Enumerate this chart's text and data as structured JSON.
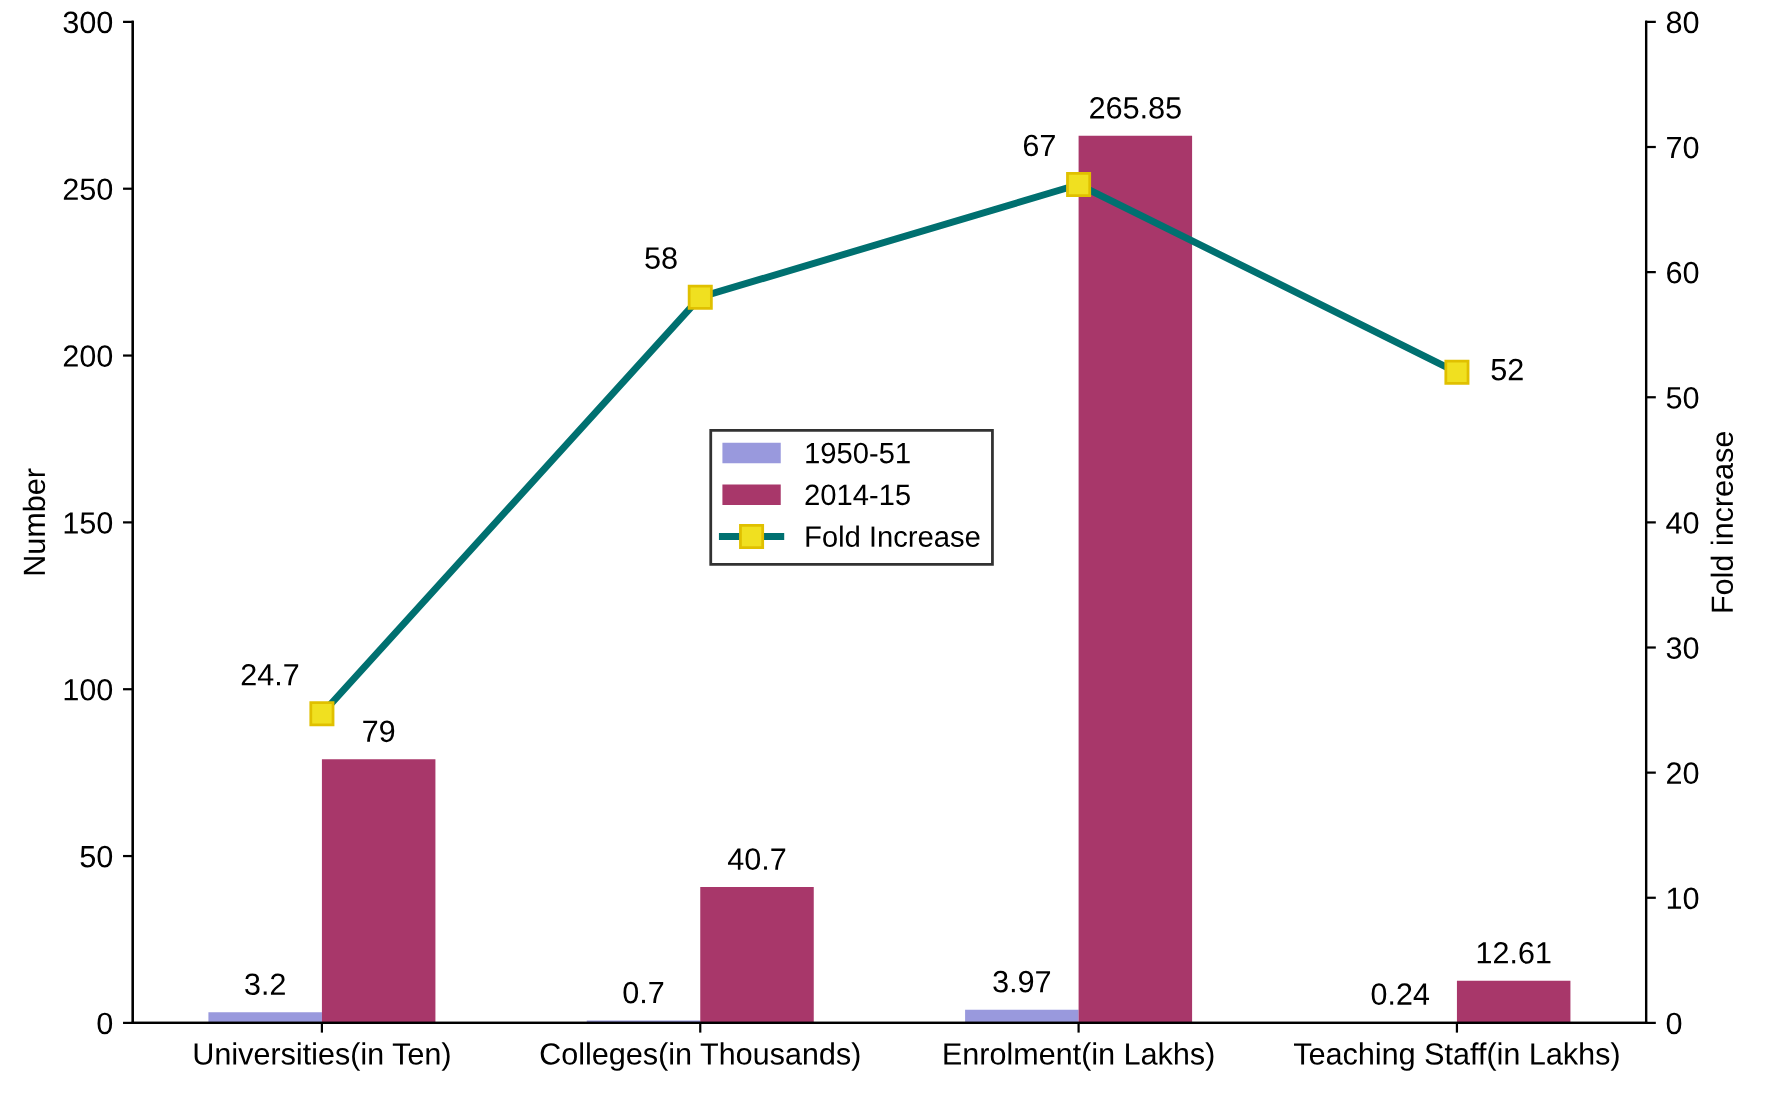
{
  "chart_data": {
    "type": "bar",
    "categories": [
      "Universities(in Ten)",
      "Colleges(in Thousands)",
      "Enrolment(in Lakhs)",
      "Teaching Staff(in Lakhs)"
    ],
    "series": [
      {
        "name": "1950-51",
        "color": "#9999dd",
        "values": [
          3.2,
          0.7,
          3.97,
          0.24
        ]
      },
      {
        "name": "2014-15",
        "color": "#a8376a",
        "values": [
          79,
          40.7,
          265.85,
          12.61
        ]
      },
      {
        "name": "Fold Increase",
        "type": "line",
        "axis": "y2",
        "color": "#007070",
        "marker": "square",
        "values": [
          24.7,
          58,
          67,
          52
        ]
      }
    ],
    "ylabel": "Number",
    "y2label": "Fold increase",
    "ylim": [
      0,
      300
    ],
    "yticks": [
      0,
      50,
      100,
      150,
      200,
      250,
      300
    ],
    "y2lim": [
      0,
      80
    ],
    "y2ticks": [
      0,
      10,
      20,
      30,
      40,
      50,
      60,
      70,
      80
    ],
    "data_labels": true,
    "grid": false,
    "legend": "center"
  }
}
